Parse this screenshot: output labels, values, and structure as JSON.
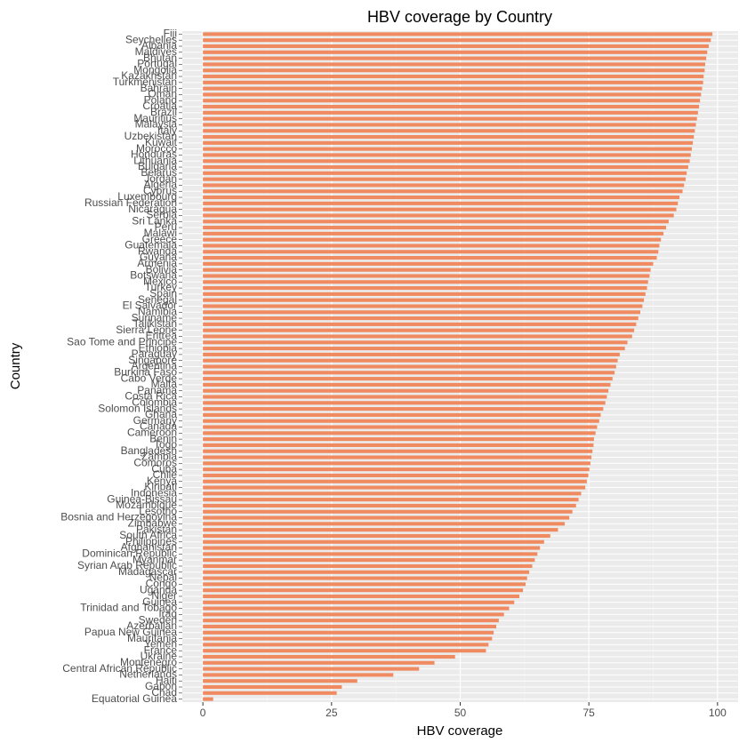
{
  "chart_data": {
    "type": "barh",
    "title": "HBV coverage by Country",
    "x_label": "HBV coverage",
    "y_label": "Country",
    "categories": [
      "Fiji",
      "Seychelles",
      "Albania",
      "Maldives",
      "Bhutan",
      "Portugal",
      "Mongolia",
      "Kazakhstan",
      "Turkmenistan",
      "Bahrain",
      "Oman",
      "Poland",
      "Croatia",
      "Brazil",
      "Mauritius",
      "Malaysia",
      "Italy",
      "Uzbekistan",
      "Kuwait",
      "Morocco",
      "Honduras",
      "Lithuania",
      "Bulgaria",
      "Belarus",
      "Jordan",
      "Algeria",
      "Cyprus",
      "Luxembourg",
      "Russian Federation",
      "Nicaragua",
      "Serbia",
      "Sri Lanka",
      "Peru",
      "Malawi",
      "Greece",
      "Guatemala",
      "Rwanda",
      "Guyana",
      "Armenia",
      "Bolivia",
      "Botswana",
      "Mexico",
      "Turkey",
      "Spain",
      "Senegal",
      "El Salvador",
      "Namibia",
      "Suriname",
      "Tajikistan",
      "Sierra Leone",
      "Eritrea",
      "Sao Tome and Principe",
      "Ethiopia",
      "Paraguay",
      "Singapore",
      "Argentina",
      "Burkina Faso",
      "Cabo Verde",
      "Malta",
      "Panama",
      "Costa Rica",
      "Colombia",
      "Solomon Islands",
      "Ghana",
      "Germany",
      "Canada",
      "Cameroon",
      "Benin",
      "Togo",
      "Bangladesh",
      "Zambia",
      "Comoros",
      "Cuba",
      "Chile",
      "Kenya",
      "Kiribati",
      "Indonesia",
      "Guinea-Bissau",
      "Mozambique",
      "Lesotho",
      "Bosnia and Herzegovina",
      "Zimbabwe",
      "Pakistan",
      "South Africa",
      "Philippines",
      "Afghanistan",
      "Dominican Republic",
      "Myanmar",
      "Syrian Arab Republic",
      "Madagascar",
      "Nepal",
      "Congo",
      "Uganda",
      "Niger",
      "Guinea",
      "Trinidad and Tobago",
      "Iraq",
      "Sweden",
      "Azerbaijan",
      "Papua New Guinea",
      "Mauritania",
      "Yemen",
      "France",
      "Ukraine",
      "Montenegro",
      "Central African Republic",
      "Netherlands",
      "Haiti",
      "Gabon",
      "Chad",
      "Equatorial Guinea"
    ],
    "values": [
      99,
      98.7,
      98.3,
      98,
      97.8,
      97.6,
      97.5,
      97.3,
      97.2,
      97,
      96.8,
      96.6,
      96.4,
      96.2,
      96,
      95.8,
      95.6,
      95.4,
      95.2,
      95,
      94.8,
      94.6,
      94.3,
      94,
      93.8,
      93.5,
      93.2,
      92.6,
      92.3,
      92,
      91.5,
      90.5,
      90,
      89.5,
      89,
      88.7,
      88.5,
      88.2,
      87.5,
      87,
      86.8,
      86.5,
      86.3,
      86,
      85.7,
      85.4,
      85,
      84.6,
      84.2,
      83.8,
      83.4,
      82.5,
      82,
      81,
      80.6,
      80.3,
      80,
      79.6,
      79.2,
      78.8,
      78.5,
      78.2,
      77.8,
      77.3,
      77,
      76.6,
      76.3,
      76,
      75.9,
      75.7,
      75.5,
      75.3,
      75.1,
      74.9,
      74.6,
      74.3,
      73.5,
      73,
      72.5,
      71.8,
      71.2,
      70.3,
      69,
      67.5,
      66.3,
      65.5,
      65,
      64.5,
      64,
      63.4,
      63,
      62.7,
      62.2,
      61.5,
      60.5,
      59.5,
      58.5,
      57.5,
      57,
      56.5,
      56.2,
      55.5,
      55,
      49,
      45,
      42,
      37,
      30,
      27,
      26,
      2
    ],
    "color": "#f08a60",
    "xlim": [
      -4,
      104
    ],
    "xticks": [
      0,
      25,
      50,
      75,
      100
    ],
    "grid": true
  }
}
